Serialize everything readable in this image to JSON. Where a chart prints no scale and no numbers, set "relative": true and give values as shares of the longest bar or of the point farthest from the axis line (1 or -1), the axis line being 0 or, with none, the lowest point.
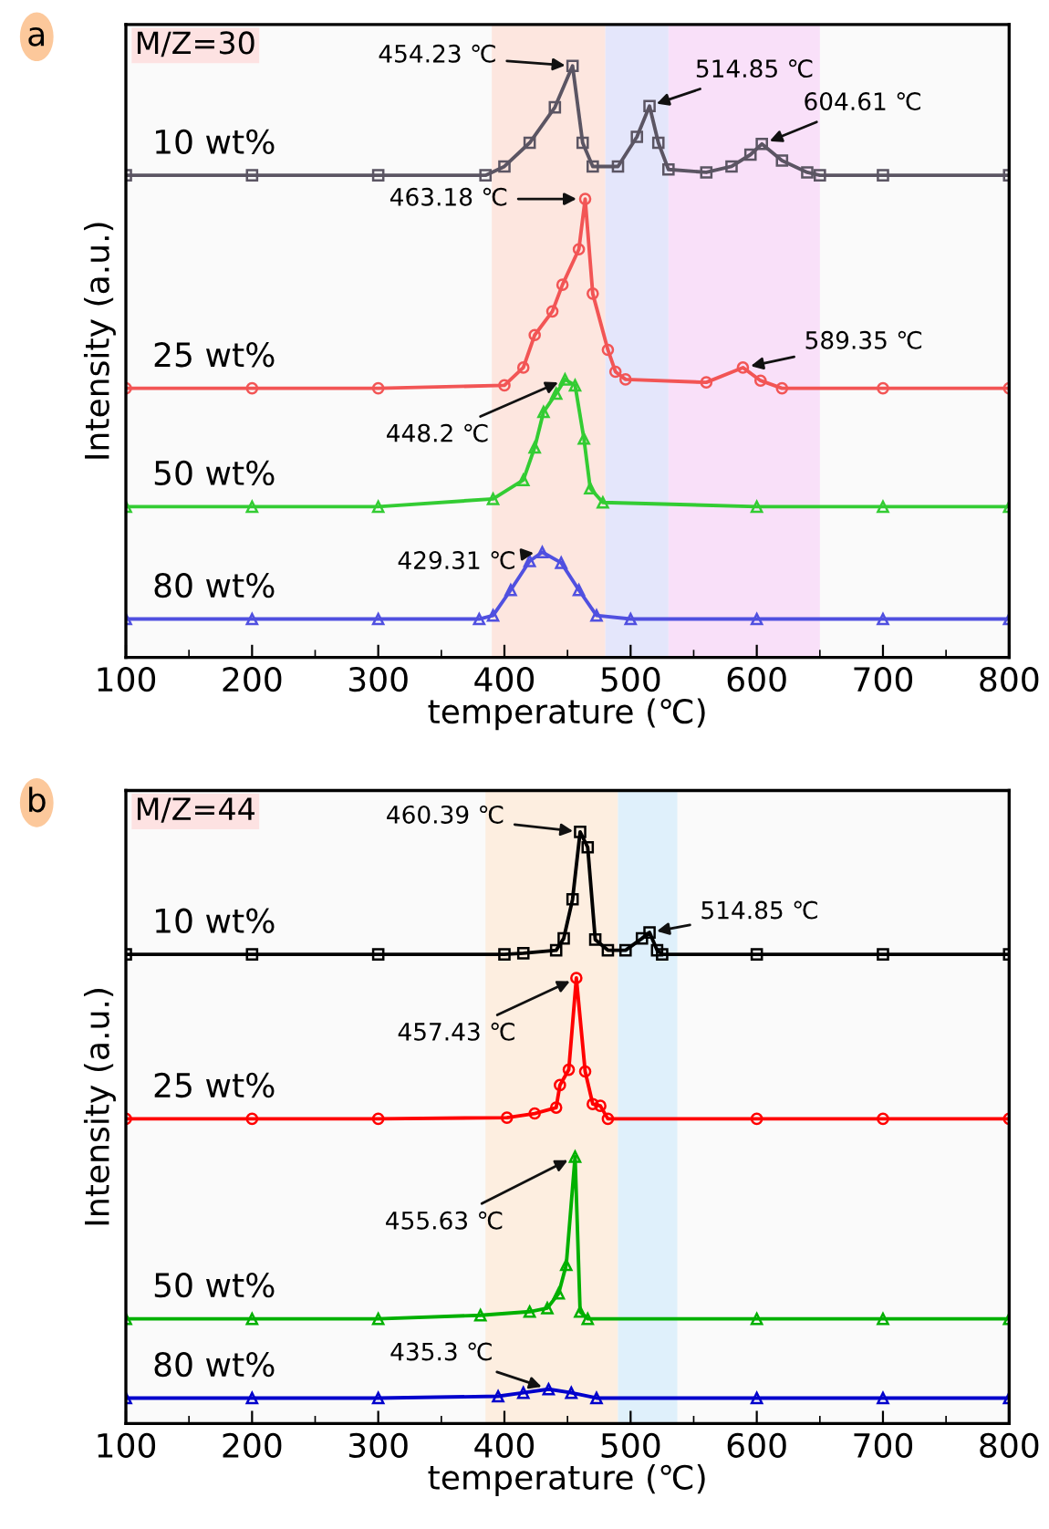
{
  "chart_data": [
    {
      "type": "line",
      "title": "M/Z=30",
      "xlabel": "temperature (℃)",
      "ylabel": "Intensity (a.u.)",
      "relative": true,
      "tick_labels": "x",
      "grid": false,
      "legend": false,
      "line_style": "solid",
      "xlim": [
        100,
        800
      ],
      "xticks": [
        100,
        200,
        300,
        400,
        500,
        600,
        700,
        800
      ],
      "bands": [
        {
          "axis": "x",
          "from": 390,
          "to": 480,
          "color": "#fde6df"
        },
        {
          "axis": "x",
          "from": 480,
          "to": 530,
          "color": "#e4e6fb"
        },
        {
          "axis": "x",
          "from": 530,
          "to": 650,
          "color": "#f9e0f9"
        }
      ],
      "annotations": [
        "a",
        {
          "text": "454.23 ℃",
          "x": 454.23,
          "y": 1.0
        },
        {
          "text": "514.85 ℃",
          "x": 514.85,
          "y": 0.932
        },
        {
          "text": "604.61 ℃",
          "x": 604.61,
          "y": 0.868
        },
        {
          "text": "463.18 ℃",
          "x": 463.18,
          "y": 0.775
        },
        {
          "text": "589.35 ℃",
          "x": 589.35,
          "y": 0.49
        },
        {
          "text": "448.2 ℃",
          "x": 448.2,
          "y": 0.47
        },
        {
          "text": "429.31 ℃",
          "x": 429.31,
          "y": 0.178
        }
      ],
      "series": [
        {
          "name": "10 wt%",
          "color": "#5b5563",
          "marker": "square",
          "x": [
            100,
            200,
            300,
            385,
            400,
            420,
            440,
            454,
            462,
            470,
            490,
            505,
            515,
            522,
            530,
            560,
            580,
            595,
            604,
            620,
            640,
            650,
            700,
            800
          ],
          "values": [
            0.815,
            0.815,
            0.815,
            0.815,
            0.83,
            0.87,
            0.93,
            1.0,
            0.87,
            0.83,
            0.83,
            0.88,
            0.932,
            0.87,
            0.825,
            0.82,
            0.83,
            0.85,
            0.868,
            0.84,
            0.82,
            0.815,
            0.815,
            0.815
          ]
        },
        {
          "name": "25 wt%",
          "color": "#f25555",
          "marker": "circle",
          "x": [
            100,
            200,
            300,
            400,
            415,
            424,
            438,
            446,
            459,
            464,
            470,
            482,
            488,
            496,
            560,
            589,
            603,
            620,
            700,
            800
          ],
          "values": [
            0.455,
            0.455,
            0.455,
            0.46,
            0.49,
            0.545,
            0.585,
            0.63,
            0.69,
            0.775,
            0.615,
            0.52,
            0.483,
            0.47,
            0.465,
            0.49,
            0.468,
            0.455,
            0.455,
            0.455
          ]
        },
        {
          "name": "50 wt%",
          "color": "#33cc33",
          "marker": "triangle",
          "x": [
            100,
            200,
            300,
            391,
            415,
            424,
            431,
            441,
            448,
            456,
            463,
            468,
            478,
            600,
            700,
            800
          ],
          "values": [
            0.255,
            0.255,
            0.255,
            0.268,
            0.3,
            0.355,
            0.415,
            0.446,
            0.47,
            0.46,
            0.37,
            0.286,
            0.262,
            0.255,
            0.255,
            0.255
          ]
        },
        {
          "name": "80 wt%",
          "color": "#5050e0",
          "marker": "triangle",
          "x": [
            100,
            200,
            300,
            380,
            391,
            405,
            420,
            430,
            445,
            459,
            473,
            500,
            600,
            700,
            800
          ],
          "values": [
            0.065,
            0.065,
            0.065,
            0.065,
            0.071,
            0.114,
            0.163,
            0.178,
            0.16,
            0.114,
            0.071,
            0.065,
            0.065,
            0.065,
            0.065
          ]
        }
      ]
    },
    {
      "type": "line",
      "title": "M/Z=44",
      "xlabel": "temperature (℃)",
      "ylabel": "Intensity (a.u.)",
      "relative": true,
      "tick_labels": "x",
      "grid": false,
      "legend": false,
      "line_style": "solid",
      "xlim": [
        100,
        800
      ],
      "xticks": [
        100,
        200,
        300,
        400,
        500,
        600,
        700,
        800
      ],
      "bands": [
        {
          "axis": "x",
          "from": 385,
          "to": 490,
          "color": "#fdeee0"
        },
        {
          "axis": "x",
          "from": 490,
          "to": 537,
          "color": "#dff0fb"
        }
      ],
      "annotations": [
        "b",
        {
          "text": "460.39 ℃",
          "x": 460.39,
          "y": 1.0
        },
        {
          "text": "514.85 ℃",
          "x": 514.85,
          "y": 0.83
        },
        {
          "text": "457.43 ℃",
          "x": 457.43,
          "y": 0.753
        },
        {
          "text": "455.63 ℃",
          "x": 455.63,
          "y": 0.451
        },
        {
          "text": "435.3 ℃",
          "x": 435.3,
          "y": 0.058
        }
      ],
      "series": [
        {
          "name": "10 wt%",
          "color": "#000000",
          "marker": "square",
          "x": [
            100,
            200,
            300,
            400,
            415,
            441,
            447,
            454,
            460,
            466,
            472,
            482,
            496,
            509,
            515,
            521,
            525,
            600,
            700,
            800
          ],
          "values": [
            0.793,
            0.793,
            0.793,
            0.793,
            0.795,
            0.8,
            0.82,
            0.886,
            1.0,
            0.974,
            0.818,
            0.8,
            0.8,
            0.82,
            0.83,
            0.8,
            0.793,
            0.793,
            0.793,
            0.793
          ]
        },
        {
          "name": "25 wt%",
          "color": "#ff0000",
          "marker": "circle",
          "x": [
            100,
            200,
            300,
            402,
            424,
            441,
            444,
            451,
            457,
            464,
            470,
            476,
            482,
            600,
            700,
            800
          ],
          "values": [
            0.515,
            0.515,
            0.515,
            0.517,
            0.524,
            0.534,
            0.572,
            0.598,
            0.753,
            0.595,
            0.54,
            0.537,
            0.515,
            0.515,
            0.515,
            0.515
          ]
        },
        {
          "name": "50 wt%",
          "color": "#00b000",
          "marker": "triangle",
          "x": [
            100,
            200,
            300,
            381,
            420,
            434,
            443,
            449,
            456,
            460,
            466,
            600,
            700,
            800
          ],
          "values": [
            0.177,
            0.177,
            0.177,
            0.183,
            0.189,
            0.195,
            0.22,
            0.268,
            0.451,
            0.189,
            0.177,
            0.177,
            0.177,
            0.177
          ]
        },
        {
          "name": "80 wt%",
          "color": "#0000cc",
          "marker": "triangle",
          "x": [
            100,
            200,
            300,
            395,
            415,
            435,
            453,
            473,
            600,
            700,
            800
          ],
          "values": [
            0.043,
            0.043,
            0.043,
            0.046,
            0.052,
            0.058,
            0.052,
            0.043,
            0.043,
            0.043,
            0.043
          ]
        }
      ]
    }
  ]
}
